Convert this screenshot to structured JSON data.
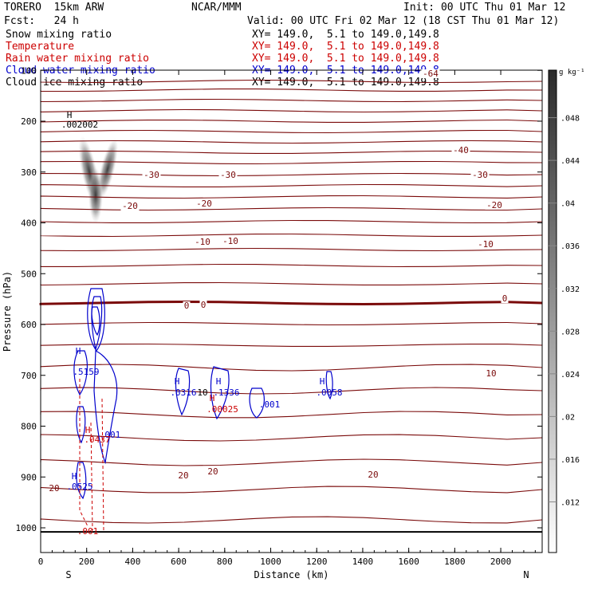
{
  "header": {
    "model": "TORERO  15km ARW",
    "center": "NCAR/MMM",
    "init": "Init: 00 UTC Thu 01 Mar 12",
    "fcst": "Fcst:   24 h",
    "valid": "Valid: 00 UTC Fri 02 Mar 12 (18 CST Thu 01 Mar 12)"
  },
  "legend": [
    {
      "label": "Snow mixing ratio",
      "xy": "XY= 149.0,  5.1 to 149.0,149.8",
      "color": "#000000"
    },
    {
      "label": "Temperature",
      "xy": "XY= 149.0,  5.1 to 149.0,149.8",
      "color": "#cc0000"
    },
    {
      "label": "Rain water mixing ratio",
      "xy": "XY= 149.0,  5.1 to 149.0,149.8",
      "color": "#cc0000"
    },
    {
      "label": "Cloud water mixing ratio",
      "xy": "XY= 149.0,  5.1 to 149.0,149.8",
      "color": "#0000cc"
    },
    {
      "label": "Cloud ice mixing ratio",
      "xy": "XY= 149.0,  5.1 to 149.0,149.8",
      "color": "#000000"
    }
  ],
  "chart_data": {
    "type": "cross-section",
    "xlabel": "Distance (km)",
    "ylabel": "Pressure (hPa)",
    "xlim": [
      0,
      2180
    ],
    "ylim": [
      100,
      1050
    ],
    "x_ticks": [
      0,
      200,
      400,
      600,
      800,
      1000,
      1200,
      1400,
      1600,
      1800,
      2000
    ],
    "y_ticks": [
      100,
      200,
      300,
      400,
      500,
      600,
      700,
      800,
      900,
      1000
    ],
    "x_end_labels": {
      "left": "S",
      "right": "N"
    },
    "colorbar": {
      "unit": "g kg⁻¹",
      "ticks": [
        ".012",
        ".016",
        ".02",
        ".024",
        ".028",
        ".032",
        ".036",
        ".04",
        ".044",
        ".048"
      ]
    },
    "temperature_contour_labels": [
      "-40",
      "-30",
      "-30",
      "-30",
      "-20",
      "-20",
      "-20",
      "-10",
      "-10",
      "-10",
      "0",
      "0",
      "0",
      "10",
      "20",
      "20",
      "20",
      "-64"
    ],
    "cloud_water_labels": [
      "H",
      ".5159",
      "H",
      ".0316",
      "10",
      "H",
      ".1336",
      ".001",
      "H",
      ".0058",
      "H",
      ".0525",
      ".001"
    ],
    "rain_water_labels": [
      "H",
      ".00025",
      "H",
      ".0437",
      ".001"
    ],
    "snow_labels": [
      "H",
      ".002002"
    ],
    "ground_pressure": 1008
  }
}
